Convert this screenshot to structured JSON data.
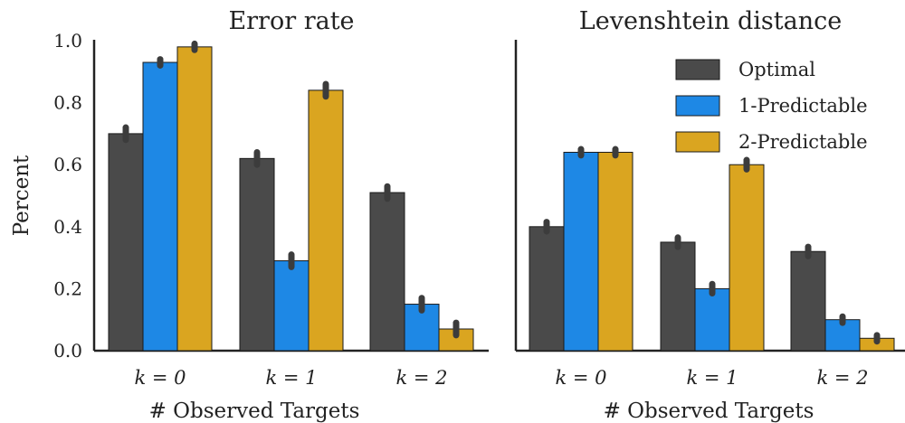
{
  "chart_data": [
    {
      "type": "bar",
      "title": "Error rate",
      "xlabel": "# Observed Targets",
      "ylabel": "Percent",
      "ylim": [
        0,
        1.0
      ],
      "yticks": [
        "0.0",
        "0.2",
        "0.4",
        "0.6",
        "0.8",
        "1.0"
      ],
      "categories": [
        "k = 0",
        "k = 1",
        "k = 2"
      ],
      "series": [
        {
          "name": "Optimal",
          "color": "#4a4a4a",
          "values": [
            0.7,
            0.62,
            0.51
          ],
          "err": [
            0.02,
            0.02,
            0.02
          ]
        },
        {
          "name": "1-Predictable",
          "color": "#1e88e5",
          "values": [
            0.93,
            0.29,
            0.15
          ],
          "err": [
            0.01,
            0.02,
            0.02
          ]
        },
        {
          "name": "2-Predictable",
          "color": "#daa520",
          "values": [
            0.98,
            0.84,
            0.07
          ],
          "err": [
            0.01,
            0.02,
            0.02
          ]
        }
      ],
      "legend": false,
      "grid": false
    },
    {
      "type": "bar",
      "title": "Levenshtein distance",
      "xlabel": "# Observed Targets",
      "ylabel": "",
      "ylim": [
        0,
        1.0
      ],
      "categories": [
        "k = 0",
        "k = 1",
        "k = 2"
      ],
      "series": [
        {
          "name": "Optimal",
          "color": "#4a4a4a",
          "values": [
            0.4,
            0.35,
            0.32
          ],
          "err": [
            0.015,
            0.015,
            0.015
          ]
        },
        {
          "name": "1-Predictable",
          "color": "#1e88e5",
          "values": [
            0.64,
            0.2,
            0.1
          ],
          "err": [
            0.01,
            0.015,
            0.01
          ]
        },
        {
          "name": "2-Predictable",
          "color": "#daa520",
          "values": [
            0.64,
            0.6,
            0.04
          ],
          "err": [
            0.01,
            0.015,
            0.01
          ]
        }
      ],
      "legend": "top-right",
      "grid": false
    }
  ]
}
